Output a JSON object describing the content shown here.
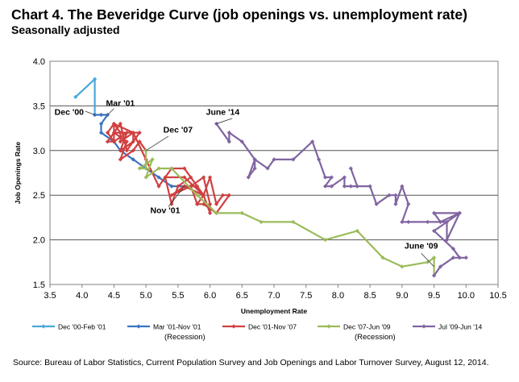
{
  "chart_data": {
    "type": "line",
    "title": "Chart 4. The Beveridge Curve (job openings vs. unemployment rate)",
    "subtitle": "Seasonally adjusted",
    "xlabel": "Unemployment Rate",
    "ylabel": "Job Openings Rate",
    "xlim": [
      3.5,
      10.5
    ],
    "ylim": [
      1.5,
      4.0
    ],
    "xticks": [
      "3.5",
      "4.0",
      "4.5",
      "5.0",
      "5.5",
      "6.0",
      "6.5",
      "7.0",
      "7.5",
      "8.0",
      "8.5",
      "9.0",
      "9.5",
      "10.0",
      "10.5"
    ],
    "yticks": [
      "1.5",
      "2.0",
      "2.5",
      "3.0",
      "3.5",
      "4.0"
    ],
    "series": [
      {
        "name": "Dec '00-Feb '01",
        "color": "#4aa9d9",
        "points": [
          [
            3.9,
            3.6
          ],
          [
            4.2,
            3.8
          ],
          [
            4.2,
            3.4
          ]
        ]
      },
      {
        "name": "Mar '01-Nov '01",
        "sub": "(Recession)",
        "color": "#3b73c0",
        "points": [
          [
            4.2,
            3.4
          ],
          [
            4.3,
            3.4
          ],
          [
            4.4,
            3.4
          ],
          [
            4.3,
            3.3
          ],
          [
            4.3,
            3.2
          ],
          [
            4.5,
            3.1
          ],
          [
            4.6,
            3.0
          ],
          [
            4.8,
            2.9
          ],
          [
            5.0,
            2.8
          ],
          [
            5.2,
            2.7
          ],
          [
            5.4,
            2.6
          ],
          [
            5.6,
            2.6
          ]
        ]
      },
      {
        "name": "Dec '01-Nov '07",
        "color": "#d04040",
        "points": [
          [
            5.6,
            2.6
          ],
          [
            5.8,
            2.6
          ],
          [
            5.7,
            2.7
          ],
          [
            5.5,
            2.6
          ],
          [
            5.4,
            2.4
          ],
          [
            5.3,
            2.7
          ],
          [
            5.6,
            2.7
          ],
          [
            5.9,
            2.5
          ],
          [
            5.8,
            2.4
          ],
          [
            5.7,
            2.6
          ],
          [
            5.9,
            2.7
          ],
          [
            6.0,
            2.4
          ],
          [
            6.0,
            2.3
          ],
          [
            5.9,
            2.5
          ],
          [
            6.0,
            2.7
          ],
          [
            6.1,
            2.4
          ],
          [
            6.2,
            2.5
          ],
          [
            6.3,
            2.5
          ],
          [
            6.1,
            2.3
          ],
          [
            5.9,
            2.4
          ],
          [
            5.8,
            2.4
          ],
          [
            5.7,
            2.6
          ],
          [
            5.4,
            2.5
          ],
          [
            5.6,
            2.6
          ],
          [
            5.9,
            2.5
          ],
          [
            5.6,
            2.8
          ],
          [
            5.4,
            2.8
          ],
          [
            5.2,
            2.6
          ],
          [
            5.0,
            2.9
          ],
          [
            4.8,
            3.2
          ],
          [
            4.6,
            3.1
          ],
          [
            4.6,
            3.2
          ],
          [
            4.5,
            3.3
          ],
          [
            4.4,
            3.2
          ],
          [
            4.5,
            3.1
          ],
          [
            4.7,
            3.2
          ],
          [
            4.6,
            3.0
          ],
          [
            4.8,
            3.1
          ],
          [
            4.8,
            3.2
          ],
          [
            4.5,
            3.3
          ],
          [
            4.5,
            3.1
          ],
          [
            4.4,
            3.1
          ],
          [
            4.6,
            3.3
          ],
          [
            4.7,
            3.0
          ],
          [
            4.9,
            3.2
          ],
          [
            4.5,
            3.2
          ],
          [
            4.7,
            3.1
          ],
          [
            4.6,
            2.9
          ],
          [
            4.8,
            3.0
          ],
          [
            4.9,
            3.1
          ],
          [
            5.0,
            3.0
          ]
        ]
      },
      {
        "name": "Dec '07-Jun '09",
        "sub": "(Recession)",
        "color": "#9bbb59",
        "points": [
          [
            5.0,
            3.0
          ],
          [
            5.0,
            2.8
          ],
          [
            4.9,
            2.8
          ],
          [
            5.1,
            2.9
          ],
          [
            5.0,
            2.7
          ],
          [
            5.2,
            2.8
          ],
          [
            5.4,
            2.8
          ],
          [
            5.8,
            2.5
          ],
          [
            6.1,
            2.3
          ],
          [
            6.5,
            2.3
          ],
          [
            6.8,
            2.2
          ],
          [
            7.3,
            2.2
          ],
          [
            7.8,
            2.0
          ],
          [
            8.3,
            2.1
          ],
          [
            8.7,
            1.8
          ],
          [
            9.0,
            1.7
          ],
          [
            9.4,
            1.75
          ],
          [
            9.5,
            1.8
          ],
          [
            9.5,
            1.6
          ]
        ]
      },
      {
        "name": "Jul '09-Jun '14",
        "color": "#8064a2",
        "points": [
          [
            9.5,
            1.6
          ],
          [
            9.6,
            1.7
          ],
          [
            9.8,
            1.8
          ],
          [
            10.0,
            1.8
          ],
          [
            9.9,
            1.8
          ],
          [
            9.8,
            1.9
          ],
          [
            9.5,
            2.1
          ],
          [
            9.9,
            2.3
          ],
          [
            9.5,
            2.3
          ],
          [
            9.6,
            2.2
          ],
          [
            9.9,
            2.3
          ],
          [
            9.7,
            2.0
          ],
          [
            9.7,
            2.2
          ],
          [
            9.4,
            2.2
          ],
          [
            9.1,
            2.2
          ],
          [
            9.0,
            2.2
          ],
          [
            9.1,
            2.4
          ],
          [
            9.0,
            2.6
          ],
          [
            8.9,
            2.4
          ],
          [
            8.9,
            2.5
          ],
          [
            8.8,
            2.5
          ],
          [
            8.6,
            2.4
          ],
          [
            8.5,
            2.6
          ],
          [
            8.3,
            2.6
          ],
          [
            8.2,
            2.8
          ],
          [
            8.3,
            2.6
          ],
          [
            8.2,
            2.6
          ],
          [
            8.1,
            2.6
          ],
          [
            8.1,
            2.7
          ],
          [
            7.9,
            2.6
          ],
          [
            7.8,
            2.6
          ],
          [
            7.9,
            2.7
          ],
          [
            7.8,
            2.7
          ],
          [
            7.7,
            2.9
          ],
          [
            7.6,
            3.1
          ],
          [
            7.3,
            2.9
          ],
          [
            7.0,
            2.9
          ],
          [
            6.9,
            2.8
          ],
          [
            6.7,
            2.9
          ],
          [
            6.6,
            2.7
          ],
          [
            6.7,
            2.8
          ],
          [
            6.7,
            2.9
          ],
          [
            6.5,
            3.1
          ],
          [
            6.3,
            3.2
          ],
          [
            6.3,
            3.1
          ],
          [
            6.1,
            3.3
          ]
        ]
      }
    ],
    "annotations": [
      {
        "text": "Dec '00",
        "x": 3.8,
        "y": 3.4
      },
      {
        "text": "Mar '01",
        "x": 4.6,
        "y": 3.5
      },
      {
        "text": "Dec '07",
        "x": 5.5,
        "y": 3.2
      },
      {
        "text": "Nov '01",
        "x": 5.3,
        "y": 2.3
      },
      {
        "text": "June '14",
        "x": 6.2,
        "y": 3.4
      },
      {
        "text": "June '09",
        "x": 9.3,
        "y": 1.9
      }
    ],
    "legend": {
      "placement": "bottom"
    }
  },
  "source": "Source: Bureau of Labor Statistics, Current Population Survey and Job Openings and Labor Turnover Survey, August 12, 2014."
}
